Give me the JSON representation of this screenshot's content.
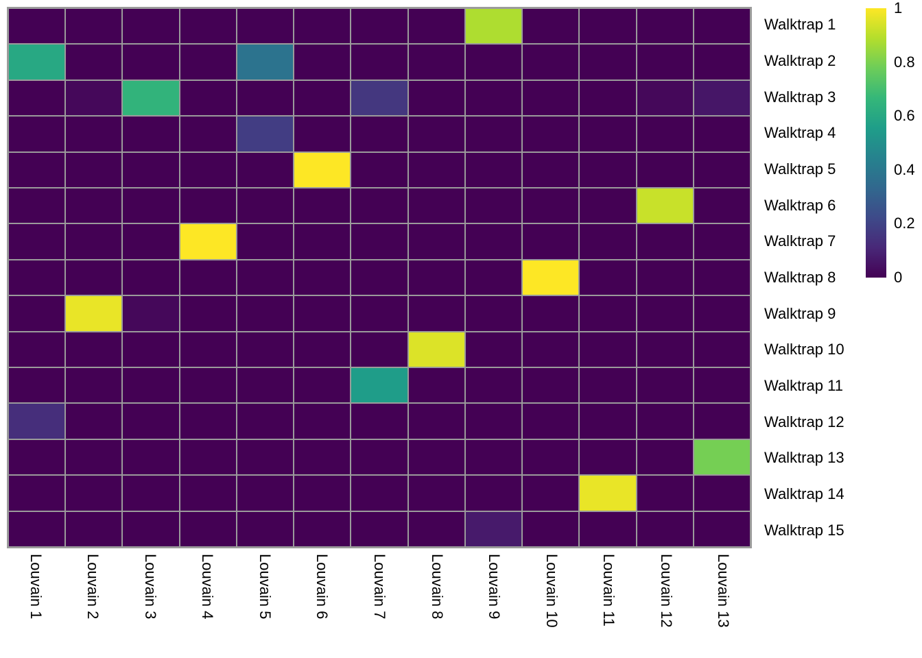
{
  "chart_data": {
    "type": "heatmap",
    "title": "",
    "xlabel": "",
    "ylabel": "",
    "rows": [
      "Walktrap 1",
      "Walktrap 2",
      "Walktrap 3",
      "Walktrap 4",
      "Walktrap 5",
      "Walktrap 6",
      "Walktrap 7",
      "Walktrap 8",
      "Walktrap 9",
      "Walktrap 10",
      "Walktrap 11",
      "Walktrap 12",
      "Walktrap 13",
      "Walktrap 14",
      "Walktrap 15"
    ],
    "columns": [
      "Louvain 1",
      "Louvain 2",
      "Louvain 3",
      "Louvain 4",
      "Louvain 5",
      "Louvain 6",
      "Louvain 7",
      "Louvain 8",
      "Louvain 9",
      "Louvain 10",
      "Louvain 11",
      "Louvain 12",
      "Louvain 13"
    ],
    "values": [
      [
        0,
        0,
        0,
        0,
        0,
        0,
        0,
        0,
        0.88,
        0,
        0,
        0,
        0
      ],
      [
        0.6,
        0,
        0,
        0,
        0.38,
        0,
        0,
        0,
        0,
        0,
        0,
        0,
        0
      ],
      [
        0,
        0.02,
        0.65,
        0,
        0,
        0,
        0.16,
        0,
        0,
        0,
        0,
        0.02,
        0.06
      ],
      [
        0,
        0,
        0,
        0,
        0.18,
        0,
        0,
        0,
        0,
        0,
        0,
        0,
        0
      ],
      [
        0,
        0,
        0,
        0,
        0,
        1,
        0,
        0,
        0,
        0,
        0,
        0,
        0
      ],
      [
        0,
        0,
        0,
        0,
        0,
        0,
        0,
        0,
        0,
        0,
        0,
        0.92,
        0
      ],
      [
        0,
        0,
        0,
        1,
        0,
        0,
        0,
        0,
        0,
        0,
        0,
        0,
        0
      ],
      [
        0,
        0,
        0,
        0,
        0,
        0,
        0,
        0,
        0,
        1,
        0,
        0,
        0
      ],
      [
        0,
        0.97,
        0.02,
        0,
        0,
        0,
        0,
        0,
        0,
        0,
        0,
        0,
        0
      ],
      [
        0,
        0,
        0,
        0,
        0,
        0,
        0,
        0.95,
        0,
        0,
        0,
        0,
        0
      ],
      [
        0,
        0,
        0,
        0,
        0,
        0,
        0.55,
        0,
        0,
        0,
        0,
        0,
        0
      ],
      [
        0.13,
        0,
        0,
        0,
        0,
        0,
        0,
        0,
        0,
        0,
        0,
        0,
        0
      ],
      [
        0,
        0,
        0,
        0,
        0,
        0,
        0,
        0,
        0,
        0,
        0,
        0,
        0.79
      ],
      [
        0,
        0,
        0,
        0,
        0,
        0,
        0,
        0,
        0,
        0,
        0.97,
        0,
        0
      ],
      [
        0,
        0,
        0,
        0,
        0,
        0,
        0,
        0,
        0.07,
        0,
        0,
        0,
        0
      ]
    ],
    "colormap": "viridis",
    "legend_position": "right",
    "colorbar": {
      "min": 0,
      "max": 1,
      "ticks": [
        {
          "label": "1",
          "value": 1
        },
        {
          "label": "0.8",
          "value": 0.8
        },
        {
          "label": "0.6",
          "value": 0.6
        },
        {
          "label": "0.4",
          "value": 0.4
        },
        {
          "label": "0.2",
          "value": 0.2
        },
        {
          "label": "0",
          "value": 0
        }
      ]
    }
  },
  "colors": {
    "viridis_stops": [
      "#440154",
      "#482878",
      "#3e4a89",
      "#31688e",
      "#26828e",
      "#1f9e89",
      "#35b779",
      "#6dcd59",
      "#b4de2c",
      "#fde725"
    ],
    "grid_line": "#9b9b9b",
    "label_text": "#000000",
    "background": "#ffffff"
  }
}
